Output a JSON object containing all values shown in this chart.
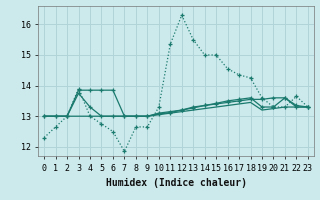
{
  "xlabel": "Humidex (Indice chaleur)",
  "background_color": "#cce9eb",
  "grid_color": "#b0d4d7",
  "line_color": "#1a7a6e",
  "x_ticks": [
    0,
    1,
    2,
    3,
    4,
    5,
    6,
    7,
    8,
    9,
    10,
    11,
    12,
    13,
    14,
    15,
    16,
    17,
    18,
    19,
    20,
    21,
    22,
    23
  ],
  "y_ticks": [
    12,
    13,
    14,
    15,
    16
  ],
  "ylim": [
    11.7,
    16.6
  ],
  "xlim": [
    -0.5,
    23.5
  ],
  "series": [
    {
      "x": [
        0,
        1,
        2,
        3,
        4,
        5,
        6,
        7,
        8,
        9,
        10,
        11,
        12,
        13,
        14,
        15,
        16,
        17,
        18,
        19,
        20,
        21,
        22,
        23
      ],
      "y": [
        12.3,
        12.65,
        13.0,
        13.9,
        13.0,
        12.75,
        12.5,
        11.85,
        12.65,
        12.65,
        13.3,
        15.35,
        16.3,
        15.5,
        15.0,
        15.0,
        14.55,
        14.35,
        14.25,
        13.6,
        13.3,
        13.3,
        13.65,
        13.3
      ],
      "style": "dotted",
      "marker": true
    },
    {
      "x": [
        0,
        1,
        2,
        3,
        4,
        5,
        6,
        7,
        8,
        9,
        10,
        11,
        12,
        13,
        14,
        15,
        16,
        17,
        18,
        19,
        20,
        21,
        22,
        23
      ],
      "y": [
        13.0,
        13.0,
        13.0,
        13.85,
        13.85,
        13.85,
        13.85,
        13.0,
        13.0,
        13.0,
        13.1,
        13.15,
        13.2,
        13.3,
        13.35,
        13.4,
        13.45,
        13.5,
        13.55,
        13.55,
        13.6,
        13.6,
        13.35,
        13.3
      ],
      "style": "solid",
      "marker": true
    },
    {
      "x": [
        0,
        1,
        2,
        3,
        4,
        5,
        6,
        7,
        8,
        9,
        10,
        11,
        12,
        13,
        14,
        15,
        16,
        17,
        18,
        19,
        20,
        21,
        22,
        23
      ],
      "y": [
        13.0,
        13.0,
        13.0,
        13.0,
        13.0,
        13.0,
        13.0,
        13.0,
        13.0,
        13.0,
        13.05,
        13.1,
        13.15,
        13.2,
        13.25,
        13.3,
        13.35,
        13.4,
        13.45,
        13.2,
        13.25,
        13.3,
        13.3,
        13.3
      ],
      "style": "solid",
      "marker": false
    },
    {
      "x": [
        0,
        1,
        2,
        3,
        4,
        5,
        6,
        7,
        8,
        9,
        10,
        11,
        12,
        13,
        14,
        15,
        16,
        17,
        18,
        19,
        20,
        21,
        22,
        23
      ],
      "y": [
        13.0,
        13.0,
        13.0,
        13.75,
        13.3,
        13.0,
        13.0,
        13.0,
        13.0,
        13.0,
        13.07,
        13.12,
        13.2,
        13.27,
        13.35,
        13.42,
        13.5,
        13.55,
        13.6,
        13.3,
        13.3,
        13.6,
        13.3,
        13.3
      ],
      "style": "solid",
      "marker": true
    }
  ]
}
